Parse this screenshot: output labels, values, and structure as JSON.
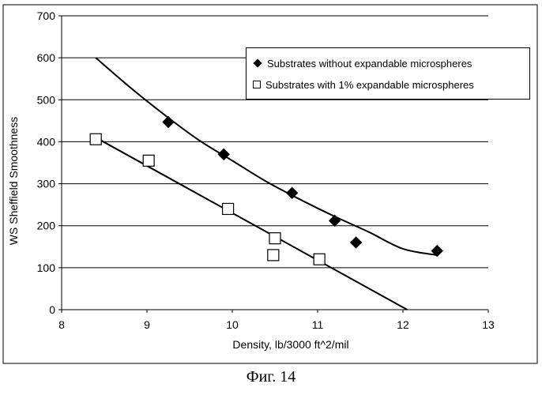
{
  "caption": "Фиг. 14",
  "chart_data": {
    "type": "scatter",
    "xlabel": "Density, lb/3000 ft^2/mil",
    "ylabel": "WS Sheffield Smoothness",
    "xlim": [
      8,
      13
    ],
    "ylim": [
      0,
      700
    ],
    "xticks": [
      8,
      9,
      10,
      11,
      12,
      13
    ],
    "yticks": [
      0,
      100,
      200,
      300,
      400,
      500,
      600,
      700
    ],
    "grid": "horizontal",
    "legend_position": "top-right",
    "series": [
      {
        "name": "Substrates without expandable microspheres",
        "marker": "filled-diamond",
        "x": [
          9.25,
          9.9,
          10.7,
          11.2,
          11.45,
          12.4
        ],
        "y": [
          447,
          370,
          278,
          212,
          160,
          140
        ],
        "trendline": {
          "x": [
            8.4,
            8.8,
            9.2,
            9.6,
            10.0,
            10.4,
            10.8,
            11.2,
            11.6,
            12.0,
            12.4
          ],
          "y": [
            600,
            530,
            465,
            405,
            355,
            305,
            262,
            222,
            185,
            145,
            130
          ]
        }
      },
      {
        "name": "Substrates with 1% expandable microspheres",
        "marker": "open-square",
        "x": [
          8.4,
          9.02,
          9.95,
          10.5,
          10.48,
          11.02
        ],
        "y": [
          406,
          355,
          240,
          170,
          130,
          120
        ],
        "trendline": {
          "x": [
            8.4,
            12.05
          ],
          "y": [
            410,
            0
          ]
        }
      }
    ]
  }
}
